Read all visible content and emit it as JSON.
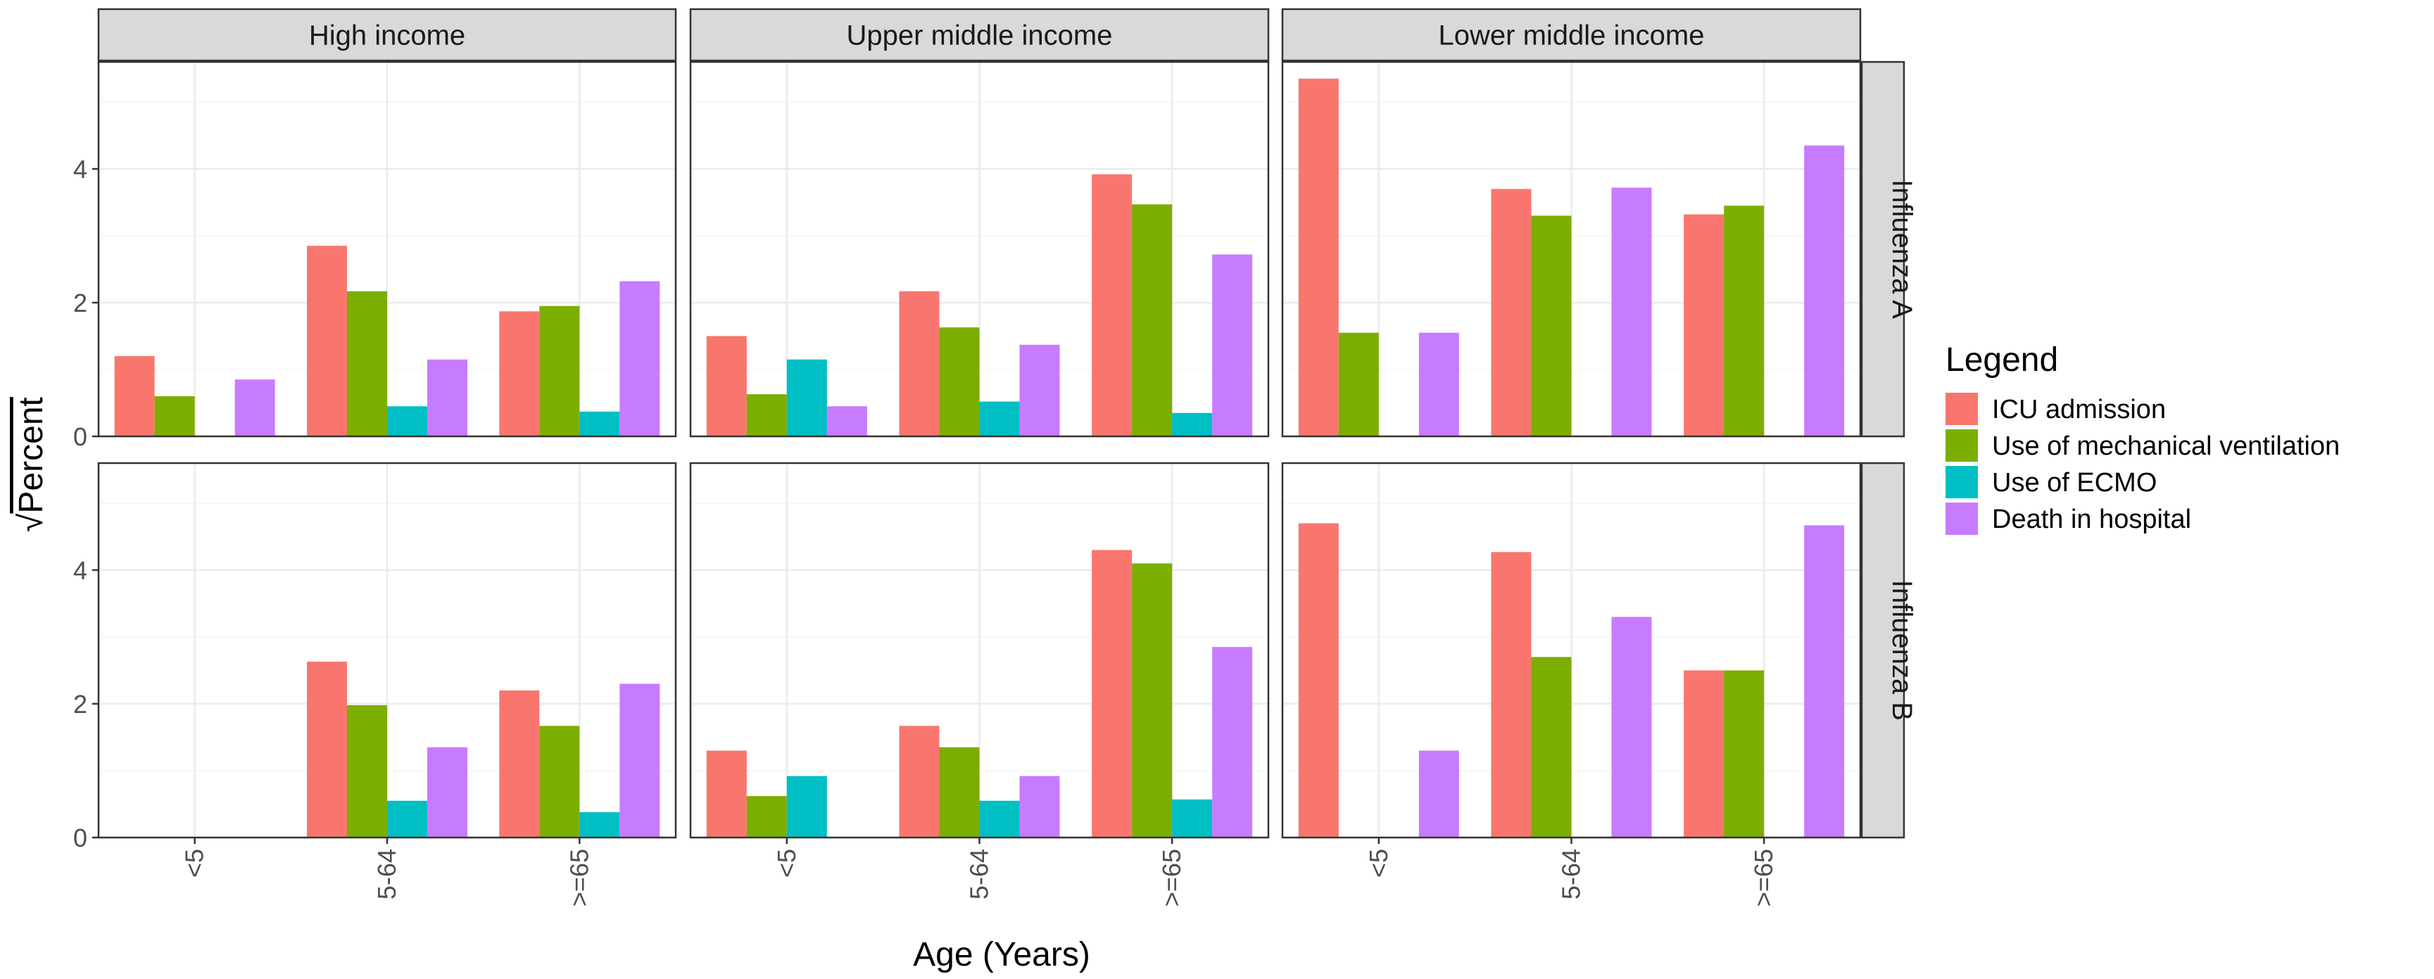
{
  "chart_data": {
    "type": "bar",
    "facet_columns": [
      "High income",
      "Upper middle income",
      "Lower middle income"
    ],
    "facet_rows": [
      "Influenza A",
      "Influenza B"
    ],
    "categories": [
      "<5",
      "5-64",
      ">=65"
    ],
    "xlabel": "Age (Years)",
    "ylabel": "√Percent",
    "ylabel_symbol": "√",
    "ylabel_text": "Percent",
    "ylim": [
      0,
      5.6
    ],
    "yticks": [
      0,
      2,
      4
    ],
    "grid": true,
    "legend": {
      "title": "Legend",
      "position": "right",
      "entries": [
        "ICU admission",
        "Use of mechanical ventilation",
        "Use of ECMO",
        "Death in hospital"
      ]
    },
    "series": [
      {
        "name": "ICU admission",
        "color": "#F8766D"
      },
      {
        "name": "Use of mechanical ventilation",
        "color": "#7CAE00"
      },
      {
        "name": "Use of ECMO",
        "color": "#00BFC4"
      },
      {
        "name": "Death in hospital",
        "color": "#C77CFF"
      }
    ],
    "panels": [
      {
        "row": "Influenza A",
        "col": "High income",
        "values": [
          [
            1.2,
            0.6,
            null,
            0.85
          ],
          [
            2.85,
            2.17,
            0.45,
            1.15
          ],
          [
            1.87,
            1.95,
            0.37,
            2.32
          ]
        ]
      },
      {
        "row": "Influenza A",
        "col": "Upper middle income",
        "values": [
          [
            1.5,
            0.63,
            1.15,
            0.45
          ],
          [
            2.17,
            1.63,
            0.52,
            1.37
          ],
          [
            3.92,
            3.47,
            0.35,
            2.72
          ]
        ]
      },
      {
        "row": "Influenza A",
        "col": "Lower middle income",
        "values": [
          [
            5.35,
            1.55,
            null,
            1.55
          ],
          [
            3.7,
            3.3,
            null,
            3.72
          ],
          [
            3.32,
            3.45,
            null,
            4.35
          ]
        ]
      },
      {
        "row": "Influenza B",
        "col": "High income",
        "values": [
          [
            null,
            null,
            null,
            null
          ],
          [
            2.63,
            1.98,
            0.55,
            1.35
          ],
          [
            2.2,
            1.67,
            0.38,
            2.3
          ]
        ]
      },
      {
        "row": "Influenza B",
        "col": "Upper middle income",
        "values": [
          [
            1.3,
            0.62,
            0.92,
            null
          ],
          [
            1.67,
            1.35,
            0.55,
            0.92
          ],
          [
            4.3,
            4.1,
            0.57,
            2.85
          ]
        ]
      },
      {
        "row": "Influenza B",
        "col": "Lower middle income",
        "values": [
          [
            4.7,
            null,
            null,
            1.3
          ],
          [
            4.27,
            2.7,
            null,
            3.3
          ],
          [
            2.5,
            2.5,
            null,
            4.67
          ]
        ]
      }
    ]
  }
}
